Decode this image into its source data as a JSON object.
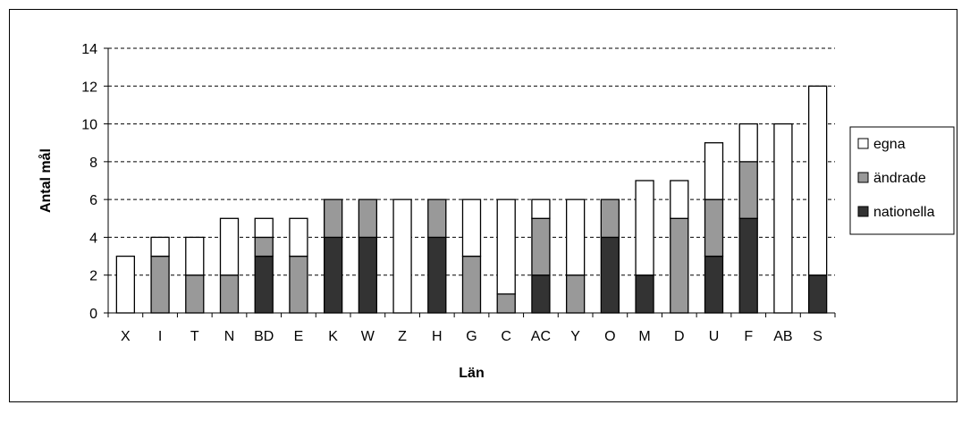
{
  "chart_data": {
    "type": "bar",
    "stacked": true,
    "xlabel": "Län",
    "ylabel": "Antal mål",
    "ylim": [
      0,
      14
    ],
    "yticks": [
      0,
      2,
      4,
      6,
      8,
      10,
      12,
      14
    ],
    "grid": "horizontal-dashed",
    "legend_position": "right",
    "categories": [
      "X",
      "I",
      "T",
      "N",
      "BD",
      "E",
      "K",
      "W",
      "Z",
      "H",
      "G",
      "C",
      "AC",
      "Y",
      "O",
      "M",
      "D",
      "U",
      "F",
      "AB",
      "S"
    ],
    "series": [
      {
        "name": "nationella",
        "color": "#333333",
        "values": [
          0,
          0,
          0,
          0,
          3,
          0,
          4,
          4,
          0,
          4,
          0,
          0,
          2,
          0,
          4,
          2,
          0,
          3,
          5,
          0,
          2
        ]
      },
      {
        "name": "ändrade",
        "color": "#999999",
        "values": [
          0,
          3,
          2,
          2,
          1,
          3,
          2,
          2,
          0,
          2,
          3,
          1,
          3,
          2,
          2,
          0,
          5,
          3,
          3,
          0,
          0
        ]
      },
      {
        "name": "egna",
        "color": "#ffffff",
        "values": [
          3,
          1,
          2,
          3,
          1,
          2,
          0,
          0,
          6,
          0,
          3,
          5,
          1,
          4,
          0,
          5,
          2,
          3,
          2,
          10,
          10
        ]
      }
    ],
    "legend_order": [
      "egna",
      "ändrade",
      "nationella"
    ]
  }
}
